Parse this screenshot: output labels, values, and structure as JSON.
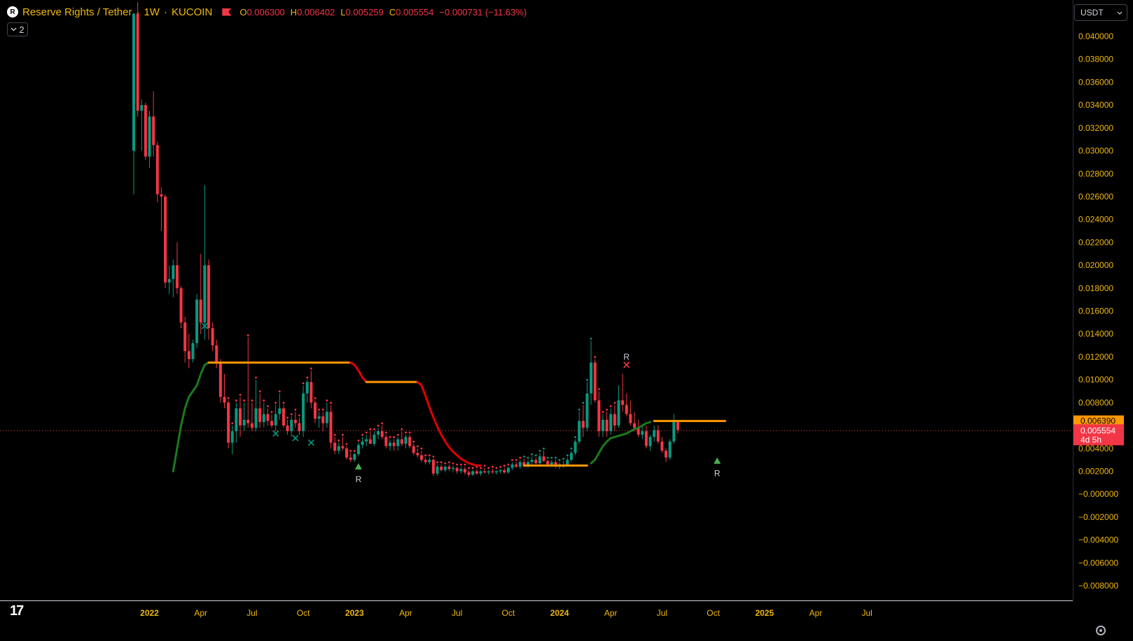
{
  "header": {
    "symbol_icon": "reserve-rights-logo-icon",
    "title": "Reserve Rights / Tether",
    "interval": "1W",
    "exchange": "KUCOIN",
    "sep": "·",
    "open_key": "O",
    "open": "0.006300",
    "high_key": "H",
    "high": "0.006402",
    "low_key": "L",
    "low": "0.005259",
    "close_key": "C",
    "close": "0.005554",
    "change": "−0.000731 (−11.63%)"
  },
  "indicators_toggle": {
    "count": "2",
    "icon": "chevron-down-icon"
  },
  "currency_select": {
    "value": "USDT"
  },
  "colors": {
    "up": "#089981",
    "down": "#f23645",
    "accent": "#f0b90b",
    "support": "#1b7a1b",
    "resist_orange": "#ff9800",
    "resist_red": "#e00000"
  },
  "chart_data": {
    "type": "candlestick",
    "symbol": "Reserve Rights / Tether",
    "timeframe": "1W",
    "y_axis": {
      "ticks": [
        "0.040000",
        "0.038000",
        "0.036000",
        "0.034000",
        "0.032000",
        "0.030000",
        "0.028000",
        "0.026000",
        "0.024000",
        "0.022000",
        "0.020000",
        "0.018000",
        "0.016000",
        "0.014000",
        "0.012000",
        "0.010000",
        "0.008000",
        "0.006000",
        "0.004000",
        "0.002000",
        "−0.000000",
        "−0.002000",
        "−0.004000",
        "−0.006000",
        "−0.008000"
      ],
      "range": [
        -0.0088,
        0.0415
      ]
    },
    "x_axis": {
      "ticks": [
        {
          "label": "2022",
          "bar": 4,
          "year": true
        },
        {
          "label": "Apr",
          "bar": 17
        },
        {
          "label": "Jul",
          "bar": 30
        },
        {
          "label": "Oct",
          "bar": 43
        },
        {
          "label": "2023",
          "bar": 56,
          "year": true
        },
        {
          "label": "Apr",
          "bar": 69
        },
        {
          "label": "Jul",
          "bar": 82
        },
        {
          "label": "Oct",
          "bar": 95
        },
        {
          "label": "2024",
          "bar": 108,
          "year": true
        },
        {
          "label": "Apr",
          "bar": 121
        },
        {
          "label": "Jul",
          "bar": 134
        },
        {
          "label": "Oct",
          "bar": 147
        },
        {
          "label": "2025",
          "bar": 160,
          "year": true
        },
        {
          "label": "Apr",
          "bar": 173
        },
        {
          "label": "Jul",
          "bar": 186
        }
      ]
    },
    "price_labels": [
      {
        "text": "0.006390",
        "price": 0.00639,
        "color": "#ff9800"
      },
      {
        "text": "0.005554",
        "sub": "4d 5h",
        "price": 0.005554,
        "color": "#f23645"
      }
    ],
    "last_price": 0.005554,
    "candles": [
      [
        0.03,
        0.042,
        0.0262,
        0.042
      ],
      [
        0.042,
        0.043,
        0.033,
        0.0335
      ],
      [
        0.0335,
        0.0345,
        0.03,
        0.034
      ],
      [
        0.034,
        0.0342,
        0.0292,
        0.0295
      ],
      [
        0.0295,
        0.0335,
        0.0285,
        0.033
      ],
      [
        0.033,
        0.0352,
        0.0295,
        0.0305
      ],
      [
        0.0305,
        0.0308,
        0.0255,
        0.0262
      ],
      [
        0.0262,
        0.0268,
        0.023,
        0.026
      ],
      [
        0.026,
        0.0262,
        0.018,
        0.0185
      ],
      [
        0.0185,
        0.02,
        0.0175,
        0.0188
      ],
      [
        0.0188,
        0.0205,
        0.0172,
        0.02
      ],
      [
        0.02,
        0.022,
        0.0175,
        0.018
      ],
      [
        0.018,
        0.0182,
        0.0145,
        0.015
      ],
      [
        0.015,
        0.0155,
        0.0115,
        0.0125
      ],
      [
        0.0125,
        0.014,
        0.011,
        0.0118
      ],
      [
        0.0118,
        0.0135,
        0.0115,
        0.0132
      ],
      [
        0.0132,
        0.0175,
        0.0128,
        0.017
      ],
      [
        0.017,
        0.021,
        0.014,
        0.015
      ],
      [
        0.015,
        0.027,
        0.0135,
        0.02
      ],
      [
        0.02,
        0.0205,
        0.0135,
        0.0145
      ],
      [
        0.0145,
        0.015,
        0.0125,
        0.013
      ],
      [
        0.013,
        0.0135,
        0.011,
        0.0115
      ],
      [
        0.0115,
        0.0118,
        0.008,
        0.0085
      ],
      [
        0.0085,
        0.0105,
        0.0075,
        0.008
      ],
      [
        0.008,
        0.0082,
        0.004,
        0.0045
      ],
      [
        0.0045,
        0.006,
        0.0035,
        0.0055
      ],
      [
        0.0055,
        0.008,
        0.0045,
        0.0075
      ],
      [
        0.0075,
        0.0085,
        0.005,
        0.006
      ],
      [
        0.006,
        0.008,
        0.0055,
        0.0065
      ],
      [
        0.0065,
        0.0137,
        0.0058,
        0.0062
      ],
      [
        0.0062,
        0.008,
        0.0055,
        0.0058
      ],
      [
        0.0058,
        0.01,
        0.0055,
        0.0075
      ],
      [
        0.0075,
        0.0088,
        0.0058,
        0.0063
      ],
      [
        0.0063,
        0.008,
        0.0058,
        0.007
      ],
      [
        0.007,
        0.0075,
        0.006,
        0.0064
      ],
      [
        0.0064,
        0.007,
        0.0058,
        0.006
      ],
      [
        0.006,
        0.0078,
        0.0055,
        0.007
      ],
      [
        0.007,
        0.0088,
        0.0065,
        0.0075
      ],
      [
        0.0075,
        0.0078,
        0.0058,
        0.006
      ],
      [
        0.006,
        0.0065,
        0.0052,
        0.0055
      ],
      [
        0.0055,
        0.0068,
        0.005,
        0.0065
      ],
      [
        0.0065,
        0.0072,
        0.0058,
        0.0062
      ],
      [
        0.0062,
        0.0067,
        0.0052,
        0.0055
      ],
      [
        0.0055,
        0.0095,
        0.005,
        0.0088
      ],
      [
        0.0088,
        0.01,
        0.008,
        0.0098
      ],
      [
        0.0098,
        0.0108,
        0.0075,
        0.008
      ],
      [
        0.008,
        0.0082,
        0.0062,
        0.0066
      ],
      [
        0.0066,
        0.0072,
        0.0058,
        0.0068
      ],
      [
        0.0068,
        0.0072,
        0.0055,
        0.0062
      ],
      [
        0.0062,
        0.008,
        0.0058,
        0.0072
      ],
      [
        0.0072,
        0.0078,
        0.004,
        0.0045
      ],
      [
        0.0045,
        0.005,
        0.0035,
        0.0038
      ],
      [
        0.0038,
        0.0045,
        0.0035,
        0.0042
      ],
      [
        0.0042,
        0.005,
        0.0038,
        0.004
      ],
      [
        0.004,
        0.0042,
        0.003,
        0.0032
      ],
      [
        0.0032,
        0.0036,
        0.0028,
        0.003
      ],
      [
        0.003,
        0.0036,
        0.0028,
        0.0035
      ],
      [
        0.0035,
        0.0045,
        0.0033,
        0.0043
      ],
      [
        0.0043,
        0.005,
        0.004,
        0.0046
      ],
      [
        0.0046,
        0.0052,
        0.0042,
        0.0048
      ],
      [
        0.0048,
        0.0055,
        0.0044,
        0.0044
      ],
      [
        0.0044,
        0.0055,
        0.0042,
        0.0052
      ],
      [
        0.0052,
        0.0058,
        0.0048,
        0.0055
      ],
      [
        0.0055,
        0.006,
        0.0048,
        0.005
      ],
      [
        0.005,
        0.0052,
        0.004,
        0.0042
      ],
      [
        0.0042,
        0.0048,
        0.0038,
        0.0045
      ],
      [
        0.0045,
        0.0048,
        0.0038,
        0.0042
      ],
      [
        0.0042,
        0.005,
        0.0038,
        0.0048
      ],
      [
        0.0048,
        0.0055,
        0.0042,
        0.0044
      ],
      [
        0.0044,
        0.0052,
        0.004,
        0.005
      ],
      [
        0.005,
        0.0052,
        0.004,
        0.0042
      ],
      [
        0.0042,
        0.0044,
        0.0034,
        0.0036
      ],
      [
        0.0036,
        0.004,
        0.0032,
        0.0034
      ],
      [
        0.0034,
        0.0038,
        0.0028,
        0.003
      ],
      [
        0.003,
        0.0032,
        0.0026,
        0.0028
      ],
      [
        0.0028,
        0.0032,
        0.0026,
        0.003
      ],
      [
        0.003,
        0.0031,
        0.0016,
        0.0018
      ],
      [
        0.0018,
        0.0026,
        0.0016,
        0.0024
      ],
      [
        0.0024,
        0.0026,
        0.002,
        0.0021
      ],
      [
        0.0021,
        0.0025,
        0.0019,
        0.0024
      ],
      [
        0.0024,
        0.0026,
        0.002,
        0.0022
      ],
      [
        0.0022,
        0.0025,
        0.0019,
        0.0023
      ],
      [
        0.0023,
        0.0024,
        0.0018,
        0.002
      ],
      [
        0.002,
        0.0024,
        0.0018,
        0.0022
      ],
      [
        0.0022,
        0.0024,
        0.0017,
        0.0019
      ],
      [
        0.0019,
        0.0021,
        0.0015,
        0.0017
      ],
      [
        0.0017,
        0.0021,
        0.0016,
        0.002
      ],
      [
        0.002,
        0.0022,
        0.0017,
        0.0018
      ],
      [
        0.0018,
        0.0021,
        0.0016,
        0.002
      ],
      [
        0.002,
        0.0023,
        0.0018,
        0.0019
      ],
      [
        0.0019,
        0.0021,
        0.0017,
        0.002
      ],
      [
        0.002,
        0.0022,
        0.0018,
        0.0019
      ],
      [
        0.0019,
        0.0021,
        0.0017,
        0.002
      ],
      [
        0.002,
        0.0022,
        0.0018,
        0.0021
      ],
      [
        0.0021,
        0.0023,
        0.0018,
        0.0019
      ],
      [
        0.0019,
        0.0024,
        0.0018,
        0.0023
      ],
      [
        0.0023,
        0.0028,
        0.0021,
        0.0026
      ],
      [
        0.0026,
        0.0028,
        0.0023,
        0.0024
      ],
      [
        0.0024,
        0.003,
        0.0022,
        0.0028
      ],
      [
        0.0028,
        0.0031,
        0.0024,
        0.0025
      ],
      [
        0.0025,
        0.003,
        0.0023,
        0.0028
      ],
      [
        0.0028,
        0.0033,
        0.0026,
        0.003
      ],
      [
        0.003,
        0.0032,
        0.0026,
        0.0027
      ],
      [
        0.0027,
        0.0036,
        0.0025,
        0.0033
      ],
      [
        0.0033,
        0.0038,
        0.0028,
        0.0029
      ],
      [
        0.0029,
        0.003,
        0.0024,
        0.0026
      ],
      [
        0.0026,
        0.003,
        0.0024,
        0.0028
      ],
      [
        0.0028,
        0.003,
        0.0023,
        0.0024
      ],
      [
        0.0024,
        0.0028,
        0.0022,
        0.0026
      ],
      [
        0.0026,
        0.0029,
        0.0023,
        0.0025
      ],
      [
        0.0025,
        0.0032,
        0.0024,
        0.003
      ],
      [
        0.003,
        0.0038,
        0.0028,
        0.0036
      ],
      [
        0.0036,
        0.0048,
        0.0034,
        0.0046
      ],
      [
        0.0046,
        0.0072,
        0.0044,
        0.0064
      ],
      [
        0.0064,
        0.0078,
        0.005,
        0.0058
      ],
      [
        0.0058,
        0.0098,
        0.0055,
        0.0088
      ],
      [
        0.0088,
        0.0134,
        0.0078,
        0.0115
      ],
      [
        0.0115,
        0.0118,
        0.008,
        0.0082
      ],
      [
        0.0082,
        0.009,
        0.005,
        0.0055
      ],
      [
        0.0055,
        0.007,
        0.005,
        0.0065
      ],
      [
        0.0065,
        0.0072,
        0.005,
        0.0055
      ],
      [
        0.0055,
        0.0075,
        0.0052,
        0.007
      ],
      [
        0.007,
        0.0078,
        0.0055,
        0.006
      ],
      [
        0.006,
        0.0095,
        0.0058,
        0.0082
      ],
      [
        0.0082,
        0.0105,
        0.0072,
        0.0078
      ],
      [
        0.0078,
        0.0088,
        0.0068,
        0.007
      ],
      [
        0.007,
        0.0082,
        0.006,
        0.0062
      ],
      [
        0.0062,
        0.0072,
        0.0055,
        0.0058
      ],
      [
        0.0058,
        0.0065,
        0.005,
        0.0052
      ],
      [
        0.0052,
        0.006,
        0.0048,
        0.0055
      ],
      [
        0.0055,
        0.006,
        0.004,
        0.0042
      ],
      [
        0.0042,
        0.0052,
        0.0038,
        0.005
      ],
      [
        0.005,
        0.006,
        0.0046,
        0.0056
      ],
      [
        0.0056,
        0.006,
        0.0044,
        0.0046
      ],
      [
        0.0046,
        0.005,
        0.0036,
        0.0038
      ],
      [
        0.0038,
        0.004,
        0.0028,
        0.0032
      ],
      [
        0.0032,
        0.0048,
        0.003,
        0.0046
      ],
      [
        0.0046,
        0.007,
        0.0044,
        0.0063
      ],
      [
        0.0063,
        0.0064,
        0.0053,
        0.0056
      ]
    ],
    "markers": [
      {
        "type": "x",
        "bar": 18,
        "price": 0.0147,
        "color": "#089981"
      },
      {
        "type": "x",
        "bar": 36,
        "price": 0.0053,
        "color": "#089981"
      },
      {
        "type": "x",
        "bar": 41,
        "price": 0.0049,
        "color": "#089981"
      },
      {
        "type": "x",
        "bar": 45,
        "price": 0.0045,
        "color": "#089981"
      },
      {
        "type": "x",
        "bar": 125,
        "price": 0.0113,
        "color": "#f23645"
      },
      {
        "type": "tri-up",
        "bar": 57,
        "price": 0.0024,
        "color": "#4caf50"
      },
      {
        "type": "tri-up",
        "bar": 148,
        "price": 0.0029,
        "color": "#4caf50"
      }
    ],
    "r_labels": [
      {
        "text": "R",
        "bar": 57,
        "price": 0.0013
      },
      {
        "text": "R",
        "bar": 125,
        "price": 0.012
      },
      {
        "text": "R",
        "bar": 148,
        "price": 0.0018
      }
    ],
    "support_line": {
      "color": "#1b7a1b",
      "points": [
        [
          10,
          0.002
        ],
        [
          11,
          0.004
        ],
        [
          12,
          0.006
        ],
        [
          13,
          0.0075
        ],
        [
          14,
          0.0085
        ],
        [
          15,
          0.009
        ],
        [
          16,
          0.0095
        ],
        [
          17,
          0.0105
        ],
        [
          18,
          0.0113
        ],
        [
          19,
          0.0115
        ]
      ]
    },
    "support_line_2": {
      "color": "#1b7a1b",
      "points": [
        [
          116,
          0.0027
        ],
        [
          117,
          0.003
        ],
        [
          118,
          0.0036
        ],
        [
          119,
          0.0042
        ],
        [
          120,
          0.0046
        ],
        [
          121,
          0.0049
        ],
        [
          122,
          0.005
        ],
        [
          123,
          0.0051
        ],
        [
          124,
          0.0052
        ],
        [
          125,
          0.0053
        ],
        [
          126,
          0.0055
        ],
        [
          127,
          0.0057
        ],
        [
          128,
          0.0058
        ],
        [
          129,
          0.006
        ],
        [
          130,
          0.0062
        ],
        [
          131,
          0.0063
        ]
      ]
    },
    "resist_segments": [
      {
        "color": "#ff9800",
        "points": [
          [
            19,
            0.0115
          ],
          [
            55,
            0.0115
          ]
        ]
      },
      {
        "color": "#e00000",
        "points": [
          [
            55,
            0.0115
          ],
          [
            56,
            0.0113
          ],
          [
            57,
            0.0108
          ],
          [
            58,
            0.0102
          ],
          [
            59,
            0.0098
          ]
        ]
      },
      {
        "color": "#ff9800",
        "points": [
          [
            59,
            0.0098
          ],
          [
            72,
            0.0098
          ]
        ]
      },
      {
        "color": "#e00000",
        "points": [
          [
            72,
            0.0098
          ],
          [
            73,
            0.0095
          ],
          [
            74,
            0.0086
          ],
          [
            75,
            0.0076
          ],
          [
            76,
            0.0067
          ],
          [
            77,
            0.0059
          ],
          [
            78,
            0.0052
          ],
          [
            79,
            0.0046
          ],
          [
            80,
            0.0041
          ],
          [
            81,
            0.0037
          ],
          [
            82,
            0.0034
          ],
          [
            83,
            0.0031
          ],
          [
            84,
            0.0029
          ],
          [
            85,
            0.0027
          ],
          [
            86,
            0.0026
          ],
          [
            87,
            0.0025
          ],
          [
            88,
            0.0025
          ]
        ]
      },
      {
        "color": "#ff9800",
        "points": [
          [
            99,
            0.0025
          ],
          [
            115,
            0.0025
          ]
        ]
      },
      {
        "color": "#ff9800",
        "points": [
          [
            132,
            0.00639
          ],
          [
            150,
            0.00639
          ]
        ]
      }
    ]
  }
}
